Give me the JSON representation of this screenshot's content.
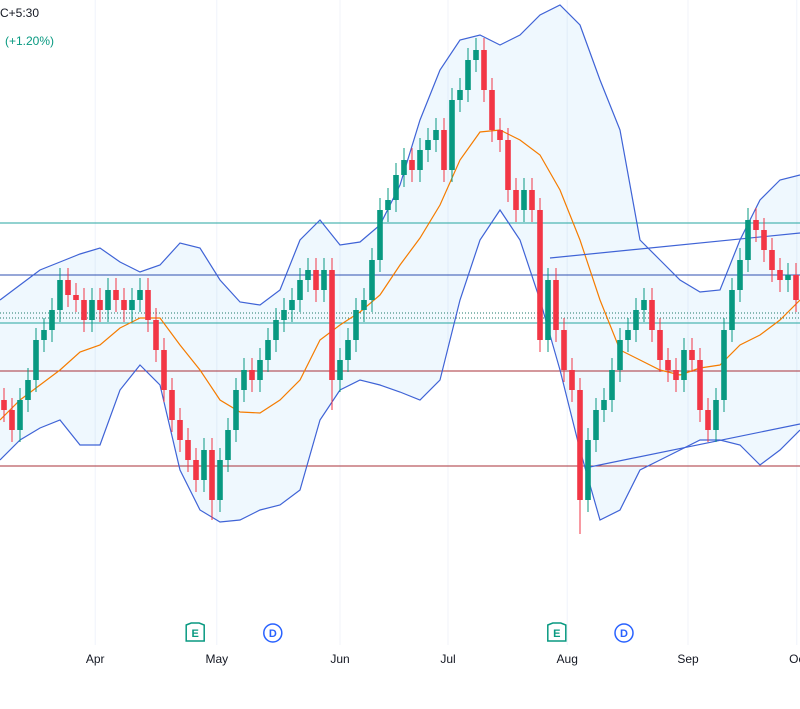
{
  "chart_data": {
    "type": "candlestick",
    "header": "C+5:30",
    "change": "(+1.20%)",
    "xlim": [
      -0.5,
      99.5
    ],
    "ylim": [
      0,
      640
    ],
    "up_color": "#089981",
    "down_color": "#f23645",
    "open": [
      240,
      230,
      210,
      240,
      260,
      300,
      310,
      330,
      360,
      345,
      340,
      320,
      340,
      330,
      350,
      340,
      330,
      340,
      350,
      320,
      290,
      250,
      220,
      200,
      180,
      160,
      190,
      140,
      180,
      210,
      250,
      270,
      260,
      280,
      300,
      320,
      330,
      340,
      360,
      370,
      350,
      370,
      260,
      280,
      300,
      330,
      340,
      380,
      430,
      440,
      465,
      480,
      470,
      490,
      500,
      510,
      470,
      540,
      550,
      580,
      590,
      550,
      510,
      500,
      450,
      430,
      450,
      430,
      300,
      360,
      310,
      270,
      250,
      140,
      200,
      230,
      240,
      270,
      300,
      310,
      330,
      340,
      310,
      280,
      270,
      260,
      290,
      280,
      230,
      210,
      240,
      310,
      350,
      380,
      420,
      410,
      390,
      370,
      360,
      365
    ],
    "high": [
      252,
      242,
      252,
      272,
      312,
      322,
      342,
      372,
      372,
      357,
      352,
      352,
      352,
      362,
      362,
      352,
      352,
      362,
      362,
      332,
      302,
      262,
      232,
      212,
      192,
      202,
      202,
      192,
      222,
      262,
      282,
      282,
      292,
      312,
      332,
      342,
      352,
      372,
      382,
      382,
      382,
      382,
      292,
      312,
      342,
      352,
      392,
      442,
      452,
      477,
      492,
      492,
      502,
      512,
      522,
      522,
      552,
      562,
      592,
      602,
      602,
      562,
      522,
      512,
      462,
      462,
      462,
      442,
      372,
      372,
      322,
      282,
      262,
      212,
      242,
      252,
      282,
      312,
      322,
      342,
      352,
      352,
      322,
      292,
      282,
      302,
      302,
      292,
      242,
      252,
      322,
      362,
      392,
      432,
      432,
      422,
      402,
      382,
      377,
      377
    ],
    "low": [
      218,
      198,
      198,
      228,
      248,
      288,
      298,
      318,
      333,
      328,
      308,
      308,
      318,
      318,
      328,
      318,
      318,
      328,
      308,
      278,
      238,
      208,
      188,
      168,
      148,
      148,
      120,
      128,
      168,
      198,
      238,
      248,
      248,
      268,
      288,
      308,
      318,
      328,
      348,
      338,
      338,
      230,
      248,
      268,
      288,
      318,
      328,
      368,
      418,
      428,
      453,
      458,
      458,
      478,
      488,
      458,
      458,
      528,
      538,
      568,
      538,
      498,
      488,
      438,
      418,
      418,
      418,
      288,
      288,
      298,
      258,
      238,
      106,
      128,
      188,
      218,
      228,
      258,
      288,
      298,
      318,
      298,
      268,
      258,
      248,
      248,
      268,
      218,
      198,
      198,
      228,
      298,
      338,
      368,
      398,
      378,
      358,
      348,
      348,
      328
    ],
    "close": [
      230,
      210,
      240,
      260,
      300,
      310,
      330,
      360,
      345,
      340,
      320,
      340,
      330,
      350,
      340,
      330,
      340,
      350,
      320,
      290,
      250,
      220,
      200,
      180,
      160,
      190,
      140,
      180,
      210,
      250,
      270,
      260,
      280,
      300,
      320,
      330,
      340,
      360,
      370,
      350,
      370,
      260,
      280,
      300,
      330,
      340,
      380,
      430,
      440,
      465,
      480,
      470,
      490,
      500,
      510,
      470,
      540,
      550,
      580,
      590,
      550,
      510,
      500,
      450,
      430,
      450,
      430,
      300,
      360,
      310,
      270,
      250,
      140,
      200,
      230,
      240,
      270,
      300,
      310,
      330,
      340,
      310,
      280,
      270,
      260,
      290,
      280,
      230,
      210,
      240,
      310,
      350,
      380,
      420,
      410,
      390,
      370,
      360,
      365,
      340
    ],
    "bands": {
      "x": [
        -0.5,
        2,
        4.5,
        7,
        9.5,
        12,
        14.5,
        17,
        19.5,
        22,
        24.5,
        27,
        29.5,
        32,
        34.5,
        37,
        39.5,
        42,
        44.5,
        47,
        49.5,
        52,
        54.5,
        57,
        59.5,
        62,
        64.5,
        67,
        69.5,
        72,
        74.5,
        77,
        79.5,
        82,
        84.5,
        87,
        89.5,
        92,
        94.5,
        97,
        99.5
      ],
      "upper": [
        340,
        355,
        370,
        378,
        386,
        392,
        378,
        368,
        375,
        397,
        392,
        360,
        338,
        335,
        350,
        400,
        420,
        395,
        398,
        415,
        455,
        520,
        570,
        600,
        605,
        595,
        605,
        625,
        635,
        615,
        560,
        510,
        400,
        380,
        360,
        348,
        350,
        400,
        440,
        460,
        465
      ],
      "middle": [
        220,
        240,
        255,
        270,
        288,
        295,
        312,
        322,
        322,
        295,
        270,
        240,
        228,
        227,
        240,
        260,
        300,
        315,
        328,
        345,
        375,
        402,
        435,
        480,
        508,
        510,
        500,
        485,
        450,
        400,
        340,
        290,
        280,
        270,
        265,
        272,
        275,
        295,
        305,
        320,
        340
      ],
      "lower": [
        180,
        200,
        212,
        220,
        195,
        195,
        250,
        275,
        255,
        170,
        130,
        118,
        120,
        130,
        135,
        150,
        220,
        250,
        260,
        255,
        248,
        240,
        260,
        340,
        400,
        430,
        400,
        340,
        270,
        190,
        120,
        130,
        170,
        180,
        190,
        200,
        200,
        195,
        175,
        190,
        210
      ],
      "band_color": "#3f63d6",
      "middle_color": "#f57c00",
      "fill": "#2196f3"
    },
    "levels": [
      {
        "value": 417,
        "color": "#26a6a0",
        "style": "solid"
      },
      {
        "value": 365,
        "color": "#2f4fb0",
        "style": "solid"
      },
      {
        "value": 327,
        "color": "#1f7a6a",
        "style": "dotted"
      },
      {
        "value": 322,
        "color": "#1f7a6a",
        "style": "dotted"
      },
      {
        "value": 317,
        "color": "#26a6a0",
        "style": "solid"
      },
      {
        "value": 269,
        "color": "#a8323a",
        "style": "solid"
      },
      {
        "value": 174,
        "color": "#a8323a",
        "style": "solid"
      }
    ],
    "trendlines": [
      {
        "x": [
          68.25,
          99.5
        ],
        "values": [
          382,
          407
        ],
        "color": "#3f63d6"
      },
      {
        "x": [
          72.6,
          99.5
        ],
        "values": [
          172,
          216
        ],
        "color": "#3f63d6"
      }
    ],
    "events": [
      {
        "x": 23.9,
        "label": "E",
        "color": "#089981"
      },
      {
        "x": 33.6,
        "label": "D",
        "color": "#2962ff"
      },
      {
        "x": 69.1,
        "label": "E",
        "color": "#089981"
      },
      {
        "x": 77.5,
        "label": "D",
        "color": "#2962ff"
      }
    ],
    "xticks": [
      {
        "value": 11.4,
        "label": "Apr"
      },
      {
        "value": 26.6,
        "label": "May"
      },
      {
        "value": 42,
        "label": "Jun"
      },
      {
        "value": 55.5,
        "label": "Jul"
      },
      {
        "value": 70.4,
        "label": "Aug"
      },
      {
        "value": 85.5,
        "label": "Sep"
      },
      {
        "value": 99.1,
        "label": "Oc"
      }
    ],
    "grid": true
  }
}
